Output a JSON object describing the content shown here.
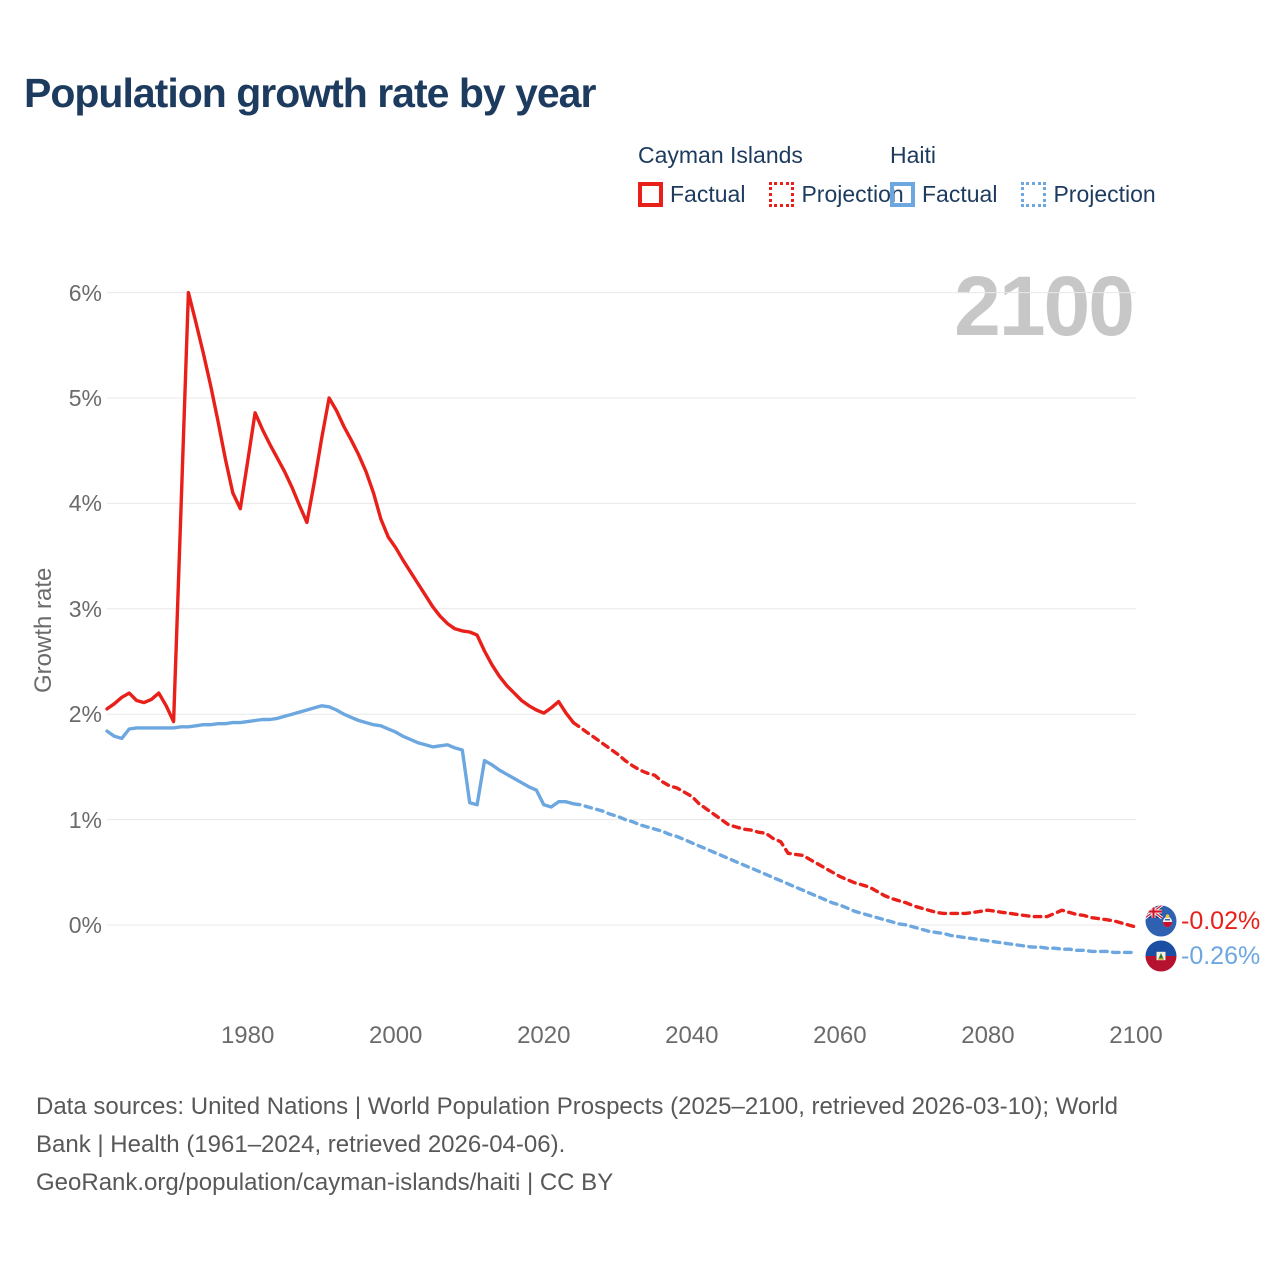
{
  "title": "Population growth rate by year",
  "watermark": "2100",
  "colors": {
    "cayman": "#e9201a",
    "haiti": "#6da7e0",
    "heading": "#1d3b5e",
    "axis_text": "#6b6b6b",
    "gridline": "#e8e8e8",
    "watermark": "#c7c7c7"
  },
  "legend": {
    "groups": [
      {
        "name": "Cayman Islands",
        "color": "#e9201a",
        "items": [
          {
            "label": "Factual",
            "style": "solid"
          },
          {
            "label": "Projection",
            "style": "dotted"
          }
        ]
      },
      {
        "name": "Haiti",
        "color": "#6da7e0",
        "items": [
          {
            "label": "Factual",
            "style": "solid"
          },
          {
            "label": "Projection",
            "style": "dotted"
          }
        ]
      }
    ]
  },
  "end_labels": [
    {
      "country": "Cayman Islands",
      "value": "-0.02%",
      "color": "#e9201a",
      "flag": "cayman-islands-flag"
    },
    {
      "country": "Haiti",
      "value": "-0.26%",
      "color": "#6da7e0",
      "flag": "haiti-flag"
    }
  ],
  "footer": {
    "lines": [
      "Data sources: United Nations | World Population Prospects (2025–2100, retrieved 2026-03-10); World",
      "Bank | Health (1961–2024, retrieved 2026-04-06).",
      "GeoRank.org/population/cayman-islands/haiti | CC BY"
    ]
  },
  "chart_data": {
    "type": "line",
    "title": "Population growth rate by year",
    "xlabel": "Year",
    "ylabel": "Growth rate",
    "xlim": [
      1961,
      2100
    ],
    "ylim": [
      -0.5,
      6.3
    ],
    "grid": "horizontal",
    "legend_position": "top-right",
    "x_ticks": [
      {
        "value": 1980,
        "label": "1980"
      },
      {
        "value": 2000,
        "label": "2000"
      },
      {
        "value": 2020,
        "label": "2020"
      },
      {
        "value": 2040,
        "label": "2040"
      },
      {
        "value": 2060,
        "label": "2060"
      },
      {
        "value": 2080,
        "label": "2080"
      },
      {
        "value": 2100,
        "label": "2100"
      }
    ],
    "y_ticks": [
      {
        "value": 0,
        "label": "0%"
      },
      {
        "value": 1,
        "label": "1%"
      },
      {
        "value": 2,
        "label": "2%"
      },
      {
        "value": 3,
        "label": "3%"
      },
      {
        "value": 4,
        "label": "4%"
      },
      {
        "value": 5,
        "label": "5%"
      },
      {
        "value": 6,
        "label": "6%"
      }
    ],
    "series": [
      {
        "name": "Cayman Islands Factual",
        "color": "#e9201a",
        "style": "solid",
        "start_year": 1961,
        "values": [
          2.05,
          2.1,
          2.16,
          2.2,
          2.13,
          2.11,
          2.14,
          2.2,
          2.08,
          1.93,
          3.95,
          6.0,
          5.72,
          5.43,
          5.12,
          4.78,
          4.42,
          4.1,
          3.95,
          4.4,
          4.86,
          4.7,
          4.56,
          4.43,
          4.3,
          4.15,
          3.98,
          3.82,
          4.2,
          4.62,
          5.0,
          4.88,
          4.73,
          4.6,
          4.46,
          4.3,
          4.1,
          3.85,
          3.68,
          3.58,
          3.46,
          3.35,
          3.24,
          3.13,
          3.02,
          2.93,
          2.86,
          2.81,
          2.79,
          2.78,
          2.75,
          2.6,
          2.47,
          2.36,
          2.27,
          2.2,
          2.13,
          2.08,
          2.04,
          2.01,
          2.06,
          2.12,
          2.01,
          1.92
        ]
      },
      {
        "name": "Cayman Islands Projection",
        "color": "#e9201a",
        "style": "dotted",
        "start_year": 2024,
        "values": [
          1.92,
          1.87,
          1.82,
          1.77,
          1.72,
          1.67,
          1.62,
          1.56,
          1.51,
          1.47,
          1.44,
          1.42,
          1.36,
          1.32,
          1.3,
          1.26,
          1.22,
          1.15,
          1.1,
          1.05,
          1.0,
          0.95,
          0.93,
          0.91,
          0.9,
          0.88,
          0.87,
          0.82,
          0.79,
          0.68,
          0.67,
          0.66,
          0.62,
          0.58,
          0.54,
          0.5,
          0.46,
          0.43,
          0.4,
          0.38,
          0.36,
          0.32,
          0.28,
          0.25,
          0.23,
          0.21,
          0.18,
          0.16,
          0.14,
          0.12,
          0.11,
          0.11,
          0.11,
          0.11,
          0.12,
          0.13,
          0.14,
          0.13,
          0.12,
          0.11,
          0.1,
          0.09,
          0.08,
          0.08,
          0.08,
          0.11,
          0.14,
          0.12,
          0.1,
          0.09,
          0.07,
          0.06,
          0.05,
          0.04,
          0.02,
          0.0,
          -0.02
        ]
      },
      {
        "name": "Haiti Factual",
        "color": "#6da7e0",
        "style": "solid",
        "start_year": 1961,
        "values": [
          1.84,
          1.79,
          1.77,
          1.86,
          1.87,
          1.87,
          1.87,
          1.87,
          1.87,
          1.87,
          1.88,
          1.88,
          1.89,
          1.9,
          1.9,
          1.91,
          1.91,
          1.92,
          1.92,
          1.93,
          1.94,
          1.95,
          1.95,
          1.96,
          1.98,
          2.0,
          2.02,
          2.04,
          2.06,
          2.08,
          2.07,
          2.04,
          2.0,
          1.97,
          1.94,
          1.92,
          1.9,
          1.89,
          1.86,
          1.83,
          1.79,
          1.76,
          1.73,
          1.71,
          1.69,
          1.7,
          1.71,
          1.68,
          1.66,
          1.16,
          1.14,
          1.56,
          1.52,
          1.47,
          1.43,
          1.39,
          1.35,
          1.31,
          1.28,
          1.14,
          1.12,
          1.17,
          1.17,
          1.15
        ]
      },
      {
        "name": "Haiti Projection",
        "color": "#6da7e0",
        "style": "dotted",
        "start_year": 2024,
        "values": [
          1.15,
          1.14,
          1.12,
          1.1,
          1.08,
          1.05,
          1.03,
          1.0,
          0.98,
          0.95,
          0.93,
          0.91,
          0.89,
          0.86,
          0.84,
          0.81,
          0.78,
          0.75,
          0.72,
          0.69,
          0.66,
          0.63,
          0.6,
          0.57,
          0.54,
          0.51,
          0.48,
          0.45,
          0.42,
          0.39,
          0.36,
          0.33,
          0.3,
          0.27,
          0.24,
          0.21,
          0.19,
          0.16,
          0.13,
          0.11,
          0.09,
          0.07,
          0.05,
          0.03,
          0.01,
          0.0,
          -0.02,
          -0.04,
          -0.06,
          -0.07,
          -0.08,
          -0.1,
          -0.11,
          -0.12,
          -0.13,
          -0.14,
          -0.15,
          -0.16,
          -0.17,
          -0.18,
          -0.19,
          -0.2,
          -0.21,
          -0.21,
          -0.22,
          -0.22,
          -0.23,
          -0.23,
          -0.24,
          -0.24,
          -0.25,
          -0.25,
          -0.25,
          -0.26,
          -0.26,
          -0.26,
          -0.26
        ]
      }
    ]
  }
}
